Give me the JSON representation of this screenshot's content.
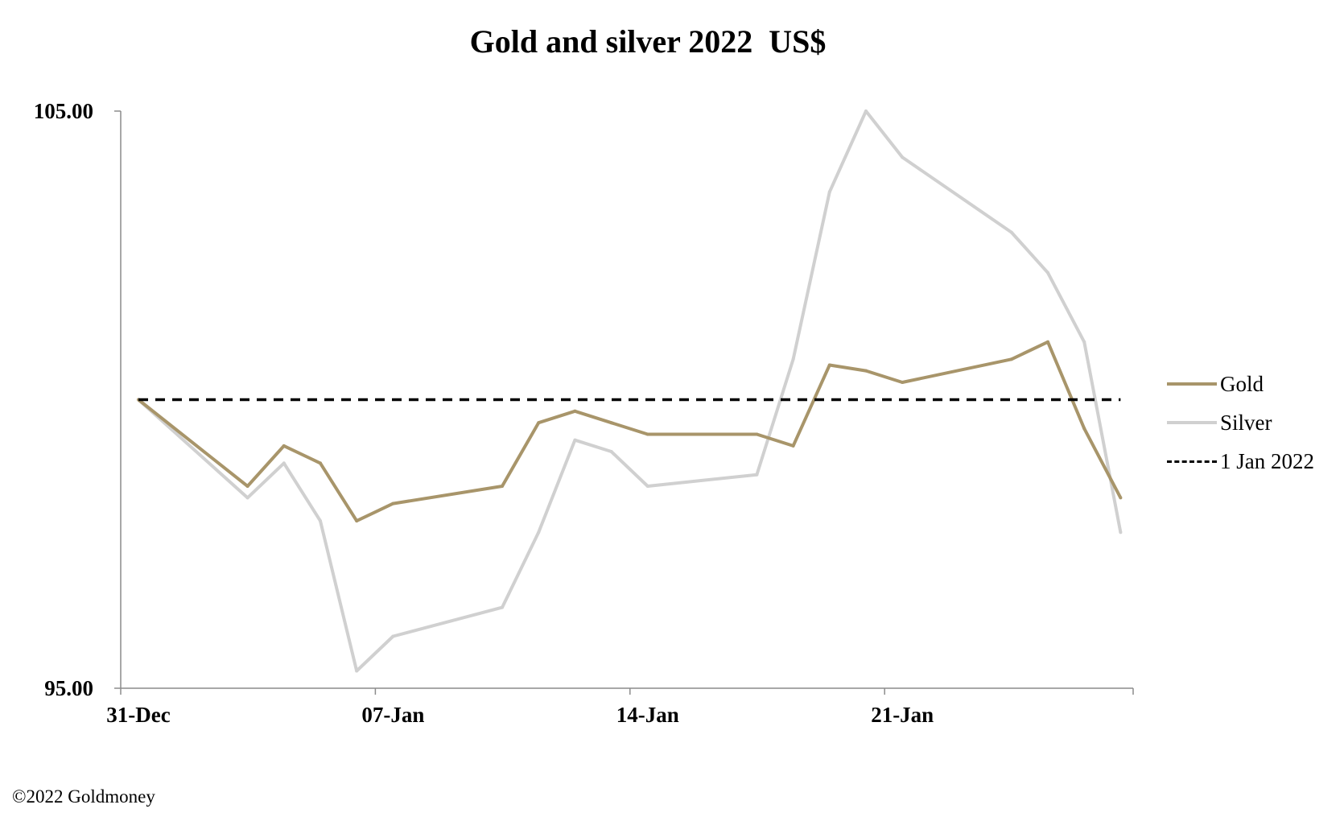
{
  "chart_data": {
    "type": "line",
    "title": "Gold and silver 2022  US$",
    "xlabel": "",
    "ylabel": "",
    "x_tick_labels": [
      "31-Dec",
      "07-Jan",
      "14-Jan",
      "21-Jan"
    ],
    "x_tick_days": [
      0,
      7,
      14,
      21
    ],
    "x_range_days": [
      0,
      28
    ],
    "y_tick_labels": [
      "105.00",
      "95.00"
    ],
    "ylim": [
      95,
      105
    ],
    "grid": false,
    "legend_position": "right",
    "series": [
      {
        "name": "Gold",
        "color": "#A8956A",
        "style": "solid",
        "points": [
          {
            "x": "31-Dec",
            "y": 100.0
          },
          {
            "x": "03-Jan",
            "y": 98.5
          },
          {
            "x": "04-Jan",
            "y": 99.2
          },
          {
            "x": "05-Jan",
            "y": 98.9
          },
          {
            "x": "06-Jan",
            "y": 97.9
          },
          {
            "x": "07-Jan",
            "y": 98.2
          },
          {
            "x": "10-Jan",
            "y": 98.5
          },
          {
            "x": "11-Jan",
            "y": 99.6
          },
          {
            "x": "12-Jan",
            "y": 99.8
          },
          {
            "x": "13-Jan",
            "y": 99.6
          },
          {
            "x": "14-Jan",
            "y": 99.4
          },
          {
            "x": "17-Jan",
            "y": 99.4
          },
          {
            "x": "18-Jan",
            "y": 99.2
          },
          {
            "x": "19-Jan",
            "y": 100.6
          },
          {
            "x": "20-Jan",
            "y": 100.5
          },
          {
            "x": "21-Jan",
            "y": 100.3
          },
          {
            "x": "24-Jan",
            "y": 100.7
          },
          {
            "x": "25-Jan",
            "y": 101.0
          },
          {
            "x": "26-Jan",
            "y": 99.5
          },
          {
            "x": "27-Jan",
            "y": 98.3
          }
        ]
      },
      {
        "name": "Silver",
        "color": "#D0D0D0",
        "style": "solid",
        "points": [
          {
            "x": "31-Dec",
            "y": 100.0
          },
          {
            "x": "03-Jan",
            "y": 98.3
          },
          {
            "x": "04-Jan",
            "y": 98.9
          },
          {
            "x": "05-Jan",
            "y": 97.9
          },
          {
            "x": "06-Jan",
            "y": 95.3
          },
          {
            "x": "07-Jan",
            "y": 95.9
          },
          {
            "x": "10-Jan",
            "y": 96.4
          },
          {
            "x": "11-Jan",
            "y": 97.7
          },
          {
            "x": "12-Jan",
            "y": 99.3
          },
          {
            "x": "13-Jan",
            "y": 99.1
          },
          {
            "x": "14-Jan",
            "y": 98.5
          },
          {
            "x": "17-Jan",
            "y": 98.7
          },
          {
            "x": "18-Jan",
            "y": 100.7
          },
          {
            "x": "19-Jan",
            "y": 103.6
          },
          {
            "x": "20-Jan",
            "y": 105.0
          },
          {
            "x": "21-Jan",
            "y": 104.2
          },
          {
            "x": "24-Jan",
            "y": 102.9
          },
          {
            "x": "25-Jan",
            "y": 102.2
          },
          {
            "x": "26-Jan",
            "y": 101.0
          },
          {
            "x": "27-Jan",
            "y": 97.7
          }
        ]
      },
      {
        "name": "1 Jan 2022",
        "color": "#000000",
        "style": "dashed",
        "points": [
          {
            "x": "31-Dec",
            "y": 100.0
          },
          {
            "x": "27-Jan",
            "y": 100.0
          }
        ]
      }
    ]
  },
  "footer": {
    "copyright": "©2022 Goldmoney"
  }
}
